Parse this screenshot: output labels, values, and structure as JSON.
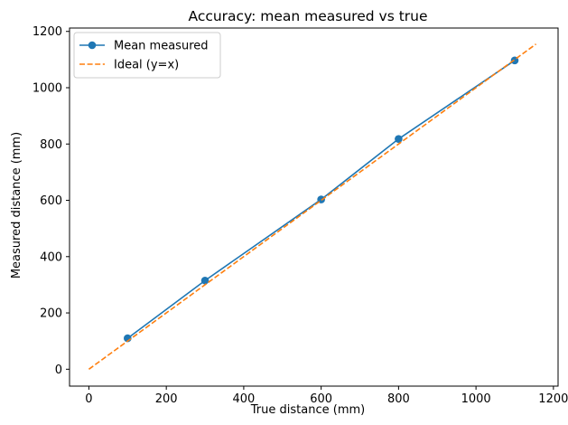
{
  "chart_data": {
    "type": "line",
    "title": "Accuracy: mean measured vs true",
    "xlabel": "True distance (mm)",
    "ylabel": "Measured distance (mm)",
    "xlim": [
      -50,
      1212
    ],
    "ylim": [
      -60,
      1212
    ],
    "xticks": [
      0,
      200,
      400,
      600,
      800,
      1000,
      1200
    ],
    "yticks": [
      0,
      200,
      400,
      600,
      800,
      1000,
      1200
    ],
    "grid": false,
    "legend_position": "top-left",
    "series": [
      {
        "name": "Mean measured",
        "style": "solid-with-markers",
        "color": "#1f77b4",
        "x": [
          100,
          300,
          600,
          800,
          1100
        ],
        "y": [
          110,
          315,
          603,
          818,
          1097
        ]
      },
      {
        "name": "Ideal (y=x)",
        "style": "dashed",
        "color": "#ff7f0e",
        "x": [
          0,
          1155
        ],
        "y": [
          0,
          1155
        ]
      }
    ]
  }
}
